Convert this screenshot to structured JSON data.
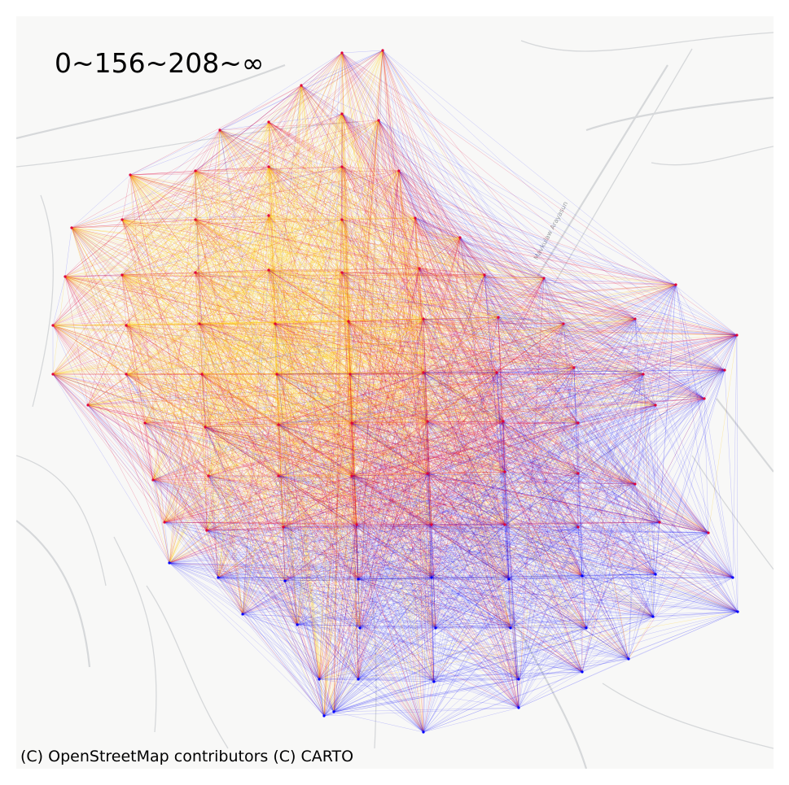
{
  "map": {
    "legend_label": "0~156~208~∞",
    "attribution": "(C) OpenStreetMap contributors (C) CARTO",
    "road_label": "Mavkulaw Arayasun",
    "basemap": "light gray street map",
    "colors": {
      "low": "#0000ff",
      "mid": "#e0003a",
      "high": "#ffc800",
      "background": "#f8f8f7",
      "roads": "#d6d8da"
    },
    "edge_layer": "dense origin-destination flow lines between grid nodes",
    "color_bins": [
      "0–156",
      "156–208",
      "208–∞"
    ]
  }
}
